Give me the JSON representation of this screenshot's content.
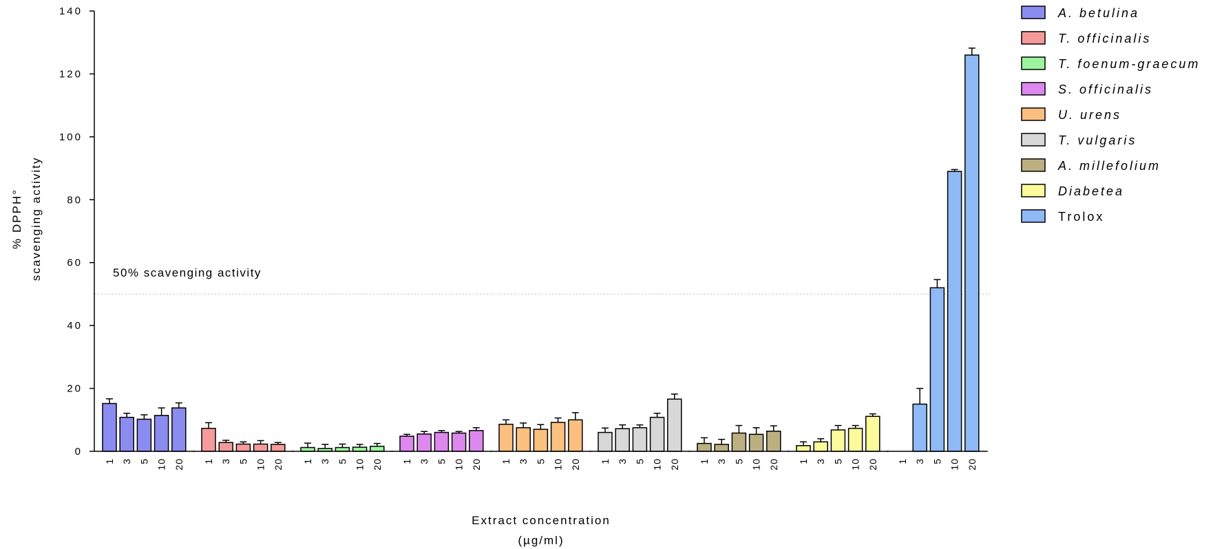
{
  "chart_data": {
    "type": "bar",
    "title": "",
    "xlabel": "Extract concentration",
    "xlabel_unit": "(µg/ml)",
    "ylabel_line1": "% DPPH°",
    "ylabel_line2": "scavenging activity",
    "ylim": [
      0,
      140
    ],
    "yticks": [
      0,
      20,
      40,
      60,
      80,
      100,
      120,
      140
    ],
    "concentrations": [
      "1",
      "3",
      "5",
      "10",
      "20"
    ],
    "reference_line": {
      "value": 50,
      "label": "50% scavenging activity",
      "style": "dotted"
    },
    "legend_position": "right",
    "series": [
      {
        "name": "A. betulina",
        "italic": true,
        "color": "#8a8cf0",
        "values": [
          15.2,
          10.8,
          10.2,
          11.4,
          13.8
        ],
        "errors": [
          1.5,
          1.3,
          1.4,
          2.4,
          1.6
        ]
      },
      {
        "name": "T. officinalis",
        "italic": true,
        "color": "#f59a9a",
        "values": [
          7.3,
          2.8,
          2.3,
          2.3,
          2.2
        ],
        "errors": [
          1.8,
          0.7,
          0.7,
          1.1,
          0.6
        ]
      },
      {
        "name": "T. foenum-graecum",
        "italic": true,
        "color": "#9cf59c",
        "values": [
          1.2,
          0.9,
          1.2,
          1.3,
          1.6
        ],
        "errors": [
          1.4,
          1.3,
          1.1,
          0.9,
          0.9
        ]
      },
      {
        "name": "S. officinalis",
        "italic": true,
        "color": "#dd88ee",
        "values": [
          4.8,
          5.5,
          6.0,
          5.8,
          6.6
        ],
        "errors": [
          0.6,
          0.8,
          0.6,
          0.5,
          0.9
        ]
      },
      {
        "name": "U. urens",
        "italic": true,
        "color": "#fbbf80",
        "values": [
          8.6,
          7.5,
          7.0,
          9.2,
          10.0
        ],
        "errors": [
          1.4,
          1.5,
          1.5,
          1.4,
          2.3
        ]
      },
      {
        "name": "T. vulgaris",
        "italic": true,
        "color": "#d8d8d8",
        "values": [
          6.0,
          7.2,
          7.5,
          10.8,
          16.6
        ],
        "errors": [
          1.4,
          1.2,
          0.9,
          1.3,
          1.6
        ]
      },
      {
        "name": "A. millefolium",
        "italic": true,
        "color": "#bdb080",
        "values": [
          2.5,
          2.2,
          5.8,
          5.4,
          6.4
        ],
        "errors": [
          1.8,
          1.6,
          2.4,
          2.1,
          1.7
        ]
      },
      {
        "name": "Diabetea",
        "italic": true,
        "color": "#fbfb9c",
        "values": [
          1.8,
          3.0,
          6.8,
          7.3,
          11.1
        ],
        "errors": [
          1.2,
          1.0,
          1.4,
          0.9,
          0.8
        ]
      },
      {
        "name": "Trolox",
        "italic": false,
        "color": "#8fbaf5",
        "values": [
          0,
          15.0,
          52.0,
          89.0,
          126.0
        ],
        "errors": [
          0,
          5.0,
          2.6,
          0.6,
          2.2
        ]
      }
    ]
  }
}
